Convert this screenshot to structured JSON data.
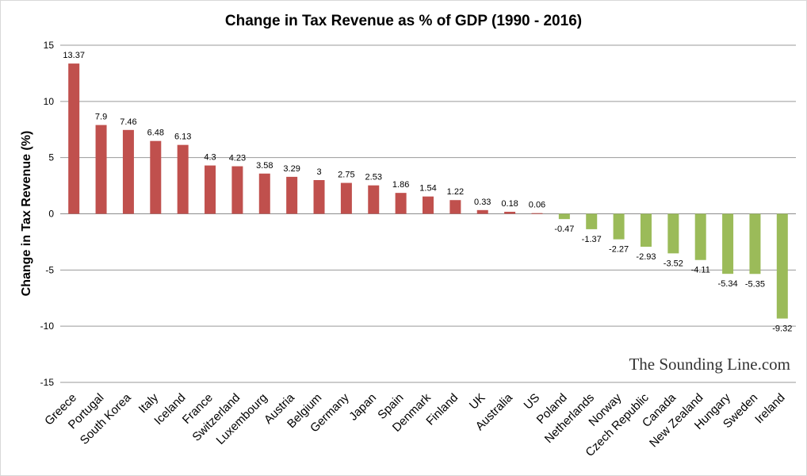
{
  "chart_data": {
    "type": "bar",
    "title": "Change in Tax Revenue as % of GDP (1990 - 2016)",
    "xlabel": "",
    "ylabel": "Change in Tax Revenue (%)",
    "ylim": [
      -15,
      15
    ],
    "yticks": [
      15,
      10,
      5,
      0,
      -5,
      -10,
      -15
    ],
    "grid": true,
    "legend": "none",
    "categories": [
      "Greece",
      "Portugal",
      "South Korea",
      "Italy",
      "Iceland",
      "France",
      "Switzerland",
      "Luxembourg",
      "Austria",
      "Belgium",
      "Germany",
      "Japan",
      "Spain",
      "Denmark",
      "Finland",
      "UK",
      "Australia",
      "US",
      "Poland",
      "Netherlands",
      "Norway",
      "Czech Republic",
      "Canada",
      "New Zealand",
      "Hungary",
      "Sweden",
      "Ireland"
    ],
    "values": [
      13.37,
      7.9,
      7.46,
      6.48,
      6.13,
      4.3,
      4.23,
      3.58,
      3.29,
      3,
      2.75,
      2.53,
      1.86,
      1.54,
      1.22,
      0.33,
      0.18,
      0.06,
      -0.47,
      -1.37,
      -2.27,
      -2.93,
      -3.52,
      -4.11,
      -5.34,
      -5.35,
      -9.32
    ],
    "data_labels": [
      "13.37",
      "7.9",
      "7.46",
      "6.48",
      "6.13",
      "4.3",
      "4.23",
      "3.58",
      "3.29",
      "3",
      "2.75",
      "2.53",
      "1.86",
      "1.54",
      "1.22",
      "0.33",
      "0.18",
      "0.06",
      "-0.47",
      "-1.37",
      "-2.27",
      "-2.93",
      "-3.52",
      "-4.11",
      "-5.34",
      "-5.35",
      "-9.32"
    ],
    "colors": {
      "positive": "#c0504d",
      "negative": "#9bbb59"
    }
  },
  "watermark": "The Sounding Line.com"
}
